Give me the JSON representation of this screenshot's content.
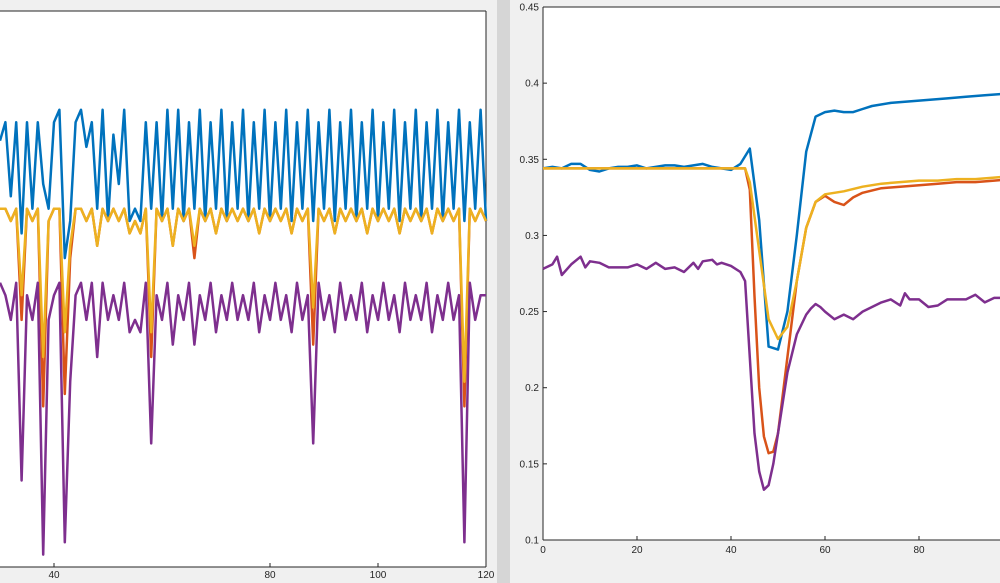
{
  "chart_data": [
    {
      "type": "line",
      "xlim": [
        30,
        120
      ],
      "ylim": [
        0.05,
        0.5
      ],
      "x_ticks": [
        40,
        80,
        100,
        120
      ],
      "x_tick_labels": [
        "40",
        "80",
        "100",
        "120"
      ],
      "grid": false,
      "series": [
        {
          "color": "#0072bd",
          "values": [
            0.395,
            0.41,
            0.35,
            0.41,
            0.32,
            0.41,
            0.34,
            0.41,
            0.36,
            0.34,
            0.41,
            0.42,
            0.3,
            0.33,
            0.41,
            0.42,
            0.39,
            0.41,
            0.34,
            0.42,
            0.33,
            0.4,
            0.36,
            0.42,
            0.33,
            0.34,
            0.33,
            0.41,
            0.34,
            0.41,
            0.33,
            0.42,
            0.34,
            0.42,
            0.33,
            0.41,
            0.34,
            0.42,
            0.33,
            0.41,
            0.34,
            0.42,
            0.33,
            0.41,
            0.34,
            0.42,
            0.33,
            0.41,
            0.34,
            0.42,
            0.33,
            0.41,
            0.34,
            0.42,
            0.33,
            0.41,
            0.34,
            0.42,
            0.33,
            0.41,
            0.34,
            0.42,
            0.33,
            0.41,
            0.34,
            0.42,
            0.33,
            0.41,
            0.34,
            0.42,
            0.33,
            0.41,
            0.34,
            0.42,
            0.33,
            0.41,
            0.34,
            0.42,
            0.33,
            0.41,
            0.34,
            0.42,
            0.33,
            0.41,
            0.34,
            0.42,
            0.33,
            0.41,
            0.34,
            0.42,
            0.33
          ]
        },
        {
          "color": "#d95319",
          "values": [
            0.34,
            0.34,
            0.33,
            0.34,
            0.25,
            0.34,
            0.33,
            0.34,
            0.18,
            0.33,
            0.34,
            0.34,
            0.19,
            0.3,
            0.34,
            0.34,
            0.33,
            0.34,
            0.31,
            0.34,
            0.33,
            0.34,
            0.33,
            0.34,
            0.32,
            0.33,
            0.32,
            0.34,
            0.22,
            0.34,
            0.33,
            0.34,
            0.31,
            0.34,
            0.33,
            0.34,
            0.3,
            0.34,
            0.33,
            0.34,
            0.32,
            0.34,
            0.33,
            0.34,
            0.33,
            0.34,
            0.33,
            0.34,
            0.32,
            0.34,
            0.33,
            0.34,
            0.33,
            0.34,
            0.32,
            0.34,
            0.33,
            0.34,
            0.23,
            0.34,
            0.33,
            0.34,
            0.32,
            0.34,
            0.33,
            0.34,
            0.33,
            0.34,
            0.32,
            0.34,
            0.33,
            0.34,
            0.33,
            0.34,
            0.32,
            0.34,
            0.33,
            0.34,
            0.33,
            0.34,
            0.32,
            0.34,
            0.33,
            0.34,
            0.33,
            0.34,
            0.18,
            0.34,
            0.33,
            0.34,
            0.33
          ]
        },
        {
          "color": "#edb120",
          "values": [
            0.34,
            0.34,
            0.33,
            0.34,
            0.27,
            0.34,
            0.33,
            0.34,
            0.22,
            0.33,
            0.34,
            0.34,
            0.24,
            0.31,
            0.34,
            0.34,
            0.33,
            0.34,
            0.31,
            0.34,
            0.33,
            0.34,
            0.33,
            0.34,
            0.32,
            0.33,
            0.32,
            0.34,
            0.24,
            0.34,
            0.33,
            0.34,
            0.31,
            0.34,
            0.33,
            0.34,
            0.31,
            0.34,
            0.33,
            0.34,
            0.32,
            0.34,
            0.33,
            0.34,
            0.33,
            0.34,
            0.33,
            0.34,
            0.32,
            0.34,
            0.33,
            0.34,
            0.33,
            0.34,
            0.32,
            0.34,
            0.33,
            0.34,
            0.26,
            0.34,
            0.33,
            0.34,
            0.32,
            0.34,
            0.33,
            0.34,
            0.33,
            0.34,
            0.32,
            0.34,
            0.33,
            0.34,
            0.33,
            0.34,
            0.32,
            0.34,
            0.33,
            0.34,
            0.33,
            0.34,
            0.32,
            0.34,
            0.33,
            0.34,
            0.33,
            0.34,
            0.2,
            0.34,
            0.33,
            0.34,
            0.33
          ]
        },
        {
          "color": "#7e2f8e",
          "values": [
            0.28,
            0.27,
            0.25,
            0.28,
            0.12,
            0.27,
            0.25,
            0.28,
            0.06,
            0.25,
            0.27,
            0.28,
            0.07,
            0.2,
            0.27,
            0.28,
            0.25,
            0.28,
            0.22,
            0.28,
            0.25,
            0.27,
            0.25,
            0.28,
            0.24,
            0.25,
            0.24,
            0.28,
            0.15,
            0.27,
            0.25,
            0.28,
            0.23,
            0.27,
            0.25,
            0.28,
            0.23,
            0.27,
            0.25,
            0.28,
            0.24,
            0.27,
            0.25,
            0.28,
            0.25,
            0.27,
            0.25,
            0.28,
            0.24,
            0.27,
            0.25,
            0.28,
            0.25,
            0.27,
            0.24,
            0.28,
            0.25,
            0.27,
            0.15,
            0.28,
            0.25,
            0.27,
            0.24,
            0.28,
            0.25,
            0.27,
            0.25,
            0.28,
            0.24,
            0.27,
            0.25,
            0.28,
            0.25,
            0.27,
            0.24,
            0.28,
            0.25,
            0.27,
            0.25,
            0.28,
            0.24,
            0.27,
            0.25,
            0.28,
            0.25,
            0.27,
            0.07,
            0.28,
            0.25,
            0.27,
            0.27
          ]
        }
      ]
    },
    {
      "type": "line",
      "xlim": [
        0,
        100
      ],
      "ylim": [
        0.1,
        0.45
      ],
      "x_ticks": [
        0,
        20,
        40,
        60,
        80
      ],
      "x_tick_labels": [
        "0",
        "20",
        "40",
        "60",
        "80"
      ],
      "y_ticks": [
        0.1,
        0.15,
        0.2,
        0.25,
        0.3,
        0.35,
        0.4,
        0.45
      ],
      "y_tick_labels": [
        "0.1",
        "0.15",
        "0.2",
        "0.25",
        "0.3",
        "0.35",
        "0.4",
        "0.45"
      ],
      "grid": false,
      "series": [
        {
          "color": "#0072bd",
          "points": [
            [
              0,
              0.344
            ],
            [
              2,
              0.345
            ],
            [
              4,
              0.344
            ],
            [
              6,
              0.347
            ],
            [
              8,
              0.347
            ],
            [
              10,
              0.343
            ],
            [
              12,
              0.342
            ],
            [
              14,
              0.344
            ],
            [
              16,
              0.345
            ],
            [
              18,
              0.345
            ],
            [
              20,
              0.346
            ],
            [
              22,
              0.344
            ],
            [
              24,
              0.345
            ],
            [
              26,
              0.346
            ],
            [
              28,
              0.346
            ],
            [
              30,
              0.345
            ],
            [
              32,
              0.346
            ],
            [
              34,
              0.347
            ],
            [
              36,
              0.345
            ],
            [
              38,
              0.344
            ],
            [
              40,
              0.343
            ],
            [
              42,
              0.347
            ],
            [
              44,
              0.357
            ],
            [
              46,
              0.31
            ],
            [
              48,
              0.227
            ],
            [
              50,
              0.225
            ],
            [
              52,
              0.25
            ],
            [
              54,
              0.3
            ],
            [
              56,
              0.355
            ],
            [
              58,
              0.378
            ],
            [
              60,
              0.381
            ],
            [
              62,
              0.382
            ],
            [
              64,
              0.381
            ],
            [
              66,
              0.381
            ],
            [
              68,
              0.383
            ],
            [
              70,
              0.385
            ],
            [
              74,
              0.387
            ],
            [
              78,
              0.388
            ],
            [
              82,
              0.389
            ],
            [
              86,
              0.39
            ],
            [
              90,
              0.391
            ],
            [
              94,
              0.392
            ],
            [
              98,
              0.393
            ],
            [
              100,
              0.393
            ]
          ]
        },
        {
          "color": "#d95319",
          "points": [
            [
              0,
              0.344
            ],
            [
              10,
              0.344
            ],
            [
              20,
              0.344
            ],
            [
              30,
              0.344
            ],
            [
              40,
              0.344
            ],
            [
              43,
              0.344
            ],
            [
              44,
              0.33
            ],
            [
              45,
              0.26
            ],
            [
              46,
              0.2
            ],
            [
              47,
              0.168
            ],
            [
              48,
              0.157
            ],
            [
              49,
              0.158
            ],
            [
              50,
              0.17
            ],
            [
              52,
              0.22
            ],
            [
              54,
              0.27
            ],
            [
              56,
              0.305
            ],
            [
              58,
              0.322
            ],
            [
              60,
              0.326
            ],
            [
              62,
              0.322
            ],
            [
              64,
              0.32
            ],
            [
              66,
              0.325
            ],
            [
              68,
              0.328
            ],
            [
              72,
              0.331
            ],
            [
              76,
              0.332
            ],
            [
              80,
              0.333
            ],
            [
              84,
              0.334
            ],
            [
              88,
              0.335
            ],
            [
              92,
              0.335
            ],
            [
              96,
              0.336
            ],
            [
              100,
              0.337
            ]
          ]
        },
        {
          "color": "#edb120",
          "points": [
            [
              0,
              0.344
            ],
            [
              10,
              0.344
            ],
            [
              20,
              0.344
            ],
            [
              30,
              0.344
            ],
            [
              40,
              0.344
            ],
            [
              43,
              0.344
            ],
            [
              44,
              0.335
            ],
            [
              46,
              0.29
            ],
            [
              48,
              0.245
            ],
            [
              50,
              0.232
            ],
            [
              52,
              0.24
            ],
            [
              54,
              0.27
            ],
            [
              56,
              0.305
            ],
            [
              58,
              0.322
            ],
            [
              60,
              0.327
            ],
            [
              64,
              0.329
            ],
            [
              68,
              0.332
            ],
            [
              72,
              0.334
            ],
            [
              76,
              0.335
            ],
            [
              80,
              0.336
            ],
            [
              84,
              0.336
            ],
            [
              88,
              0.337
            ],
            [
              92,
              0.337
            ],
            [
              96,
              0.338
            ],
            [
              100,
              0.339
            ]
          ]
        },
        {
          "color": "#7e2f8e",
          "points": [
            [
              0,
              0.278
            ],
            [
              2,
              0.281
            ],
            [
              3,
              0.286
            ],
            [
              4,
              0.274
            ],
            [
              6,
              0.281
            ],
            [
              8,
              0.286
            ],
            [
              9,
              0.279
            ],
            [
              10,
              0.283
            ],
            [
              12,
              0.282
            ],
            [
              14,
              0.279
            ],
            [
              16,
              0.279
            ],
            [
              18,
              0.279
            ],
            [
              20,
              0.281
            ],
            [
              22,
              0.278
            ],
            [
              24,
              0.282
            ],
            [
              26,
              0.278
            ],
            [
              28,
              0.279
            ],
            [
              30,
              0.276
            ],
            [
              32,
              0.282
            ],
            [
              33,
              0.278
            ],
            [
              34,
              0.283
            ],
            [
              36,
              0.284
            ],
            [
              37,
              0.281
            ],
            [
              38,
              0.282
            ],
            [
              40,
              0.28
            ],
            [
              42,
              0.276
            ],
            [
              43,
              0.27
            ],
            [
              44,
              0.22
            ],
            [
              45,
              0.17
            ],
            [
              46,
              0.145
            ],
            [
              47,
              0.133
            ],
            [
              48,
              0.136
            ],
            [
              49,
              0.15
            ],
            [
              51,
              0.19
            ],
            [
              52,
              0.21
            ],
            [
              54,
              0.235
            ],
            [
              56,
              0.248
            ],
            [
              57,
              0.252
            ],
            [
              58,
              0.255
            ],
            [
              59,
              0.253
            ],
            [
              60,
              0.25
            ],
            [
              62,
              0.245
            ],
            [
              64,
              0.248
            ],
            [
              66,
              0.245
            ],
            [
              68,
              0.25
            ],
            [
              70,
              0.253
            ],
            [
              72,
              0.256
            ],
            [
              74,
              0.258
            ],
            [
              76,
              0.254
            ],
            [
              77,
              0.262
            ],
            [
              78,
              0.258
            ],
            [
              80,
              0.258
            ],
            [
              82,
              0.253
            ],
            [
              84,
              0.254
            ],
            [
              86,
              0.258
            ],
            [
              88,
              0.258
            ],
            [
              90,
              0.258
            ],
            [
              92,
              0.261
            ],
            [
              94,
              0.256
            ],
            [
              96,
              0.259
            ],
            [
              98,
              0.259
            ],
            [
              100,
              0.265
            ]
          ]
        }
      ]
    }
  ]
}
